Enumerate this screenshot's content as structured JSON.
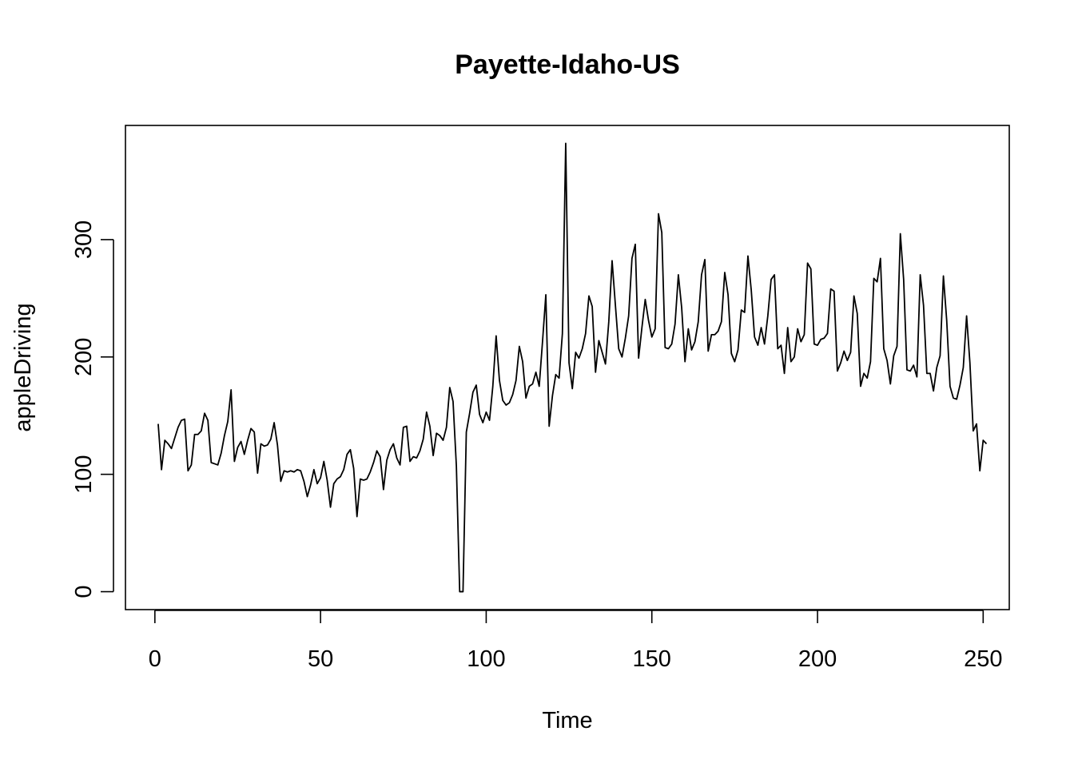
{
  "chart_data": {
    "type": "line",
    "title": "Payette-Idaho-US",
    "xlabel": "Time",
    "ylabel": "appleDriving",
    "xlim": [
      1,
      248
    ],
    "ylim": [
      0,
      382
    ],
    "x_ticks": [
      0,
      50,
      100,
      150,
      200,
      250
    ],
    "x_tick_labels": [
      "0",
      "50",
      "100",
      "150",
      "200",
      "250"
    ],
    "y_ticks": [
      0,
      100,
      200,
      300
    ],
    "y_tick_labels": [
      "0",
      "100",
      "200",
      "300"
    ],
    "grid": false,
    "line_color": "#000000",
    "series": [
      {
        "x_start": 1,
        "values": [
          143,
          104,
          129,
          126,
          122,
          131,
          140,
          146,
          147,
          103,
          108,
          134,
          134,
          137,
          152,
          146,
          110,
          109,
          108,
          118,
          133,
          145,
          172,
          111,
          123,
          128,
          117,
          129,
          139,
          136,
          101,
          126,
          124,
          125,
          130,
          144,
          125,
          94,
          103,
          102,
          103,
          102,
          104,
          103,
          94,
          81,
          91,
          104,
          92,
          97,
          111,
          95,
          72,
          92,
          96,
          98,
          104,
          117,
          121,
          105,
          64,
          96,
          95,
          96,
          102,
          110,
          120,
          115,
          87,
          112,
          121,
          126,
          114,
          108,
          140,
          141,
          111,
          115,
          114,
          120,
          130,
          153,
          141,
          116,
          135,
          133,
          129,
          140,
          174,
          162,
          107,
          0,
          0,
          136,
          152,
          170,
          176,
          151,
          144,
          153,
          146,
          175,
          218,
          180,
          163,
          159,
          161,
          168,
          180,
          209,
          196,
          165,
          175,
          177,
          187,
          175,
          213,
          253,
          141,
          167,
          185,
          182,
          220,
          382,
          195,
          173,
          204,
          199,
          207,
          220,
          252,
          243,
          187,
          214,
          204,
          194,
          230,
          282,
          244,
          207,
          200,
          216,
          235,
          284,
          296,
          199,
          225,
          249,
          231,
          217,
          224,
          322,
          306,
          208,
          207,
          211,
          228,
          270,
          242,
          196,
          224,
          206,
          213,
          230,
          270,
          283,
          205,
          219,
          219,
          222,
          230,
          272,
          253,
          203,
          196,
          206,
          240,
          238,
          286,
          257,
          217,
          210,
          225,
          211,
          235,
          266,
          270,
          207,
          210,
          186,
          225,
          196,
          200,
          224,
          213,
          219,
          280,
          275,
          211,
          210,
          215,
          216,
          220,
          258,
          256,
          188,
          195,
          205,
          197,
          204,
          252,
          237,
          175,
          186,
          182,
          196,
          267,
          264,
          284,
          207,
          197,
          177,
          201,
          209,
          305,
          266,
          189,
          188,
          193,
          183,
          270,
          244,
          186,
          186,
          171,
          191,
          201,
          269,
          231,
          175,
          165,
          164,
          176,
          191,
          235,
          195,
          137,
          143,
          103,
          129,
          126
        ]
      }
    ]
  }
}
